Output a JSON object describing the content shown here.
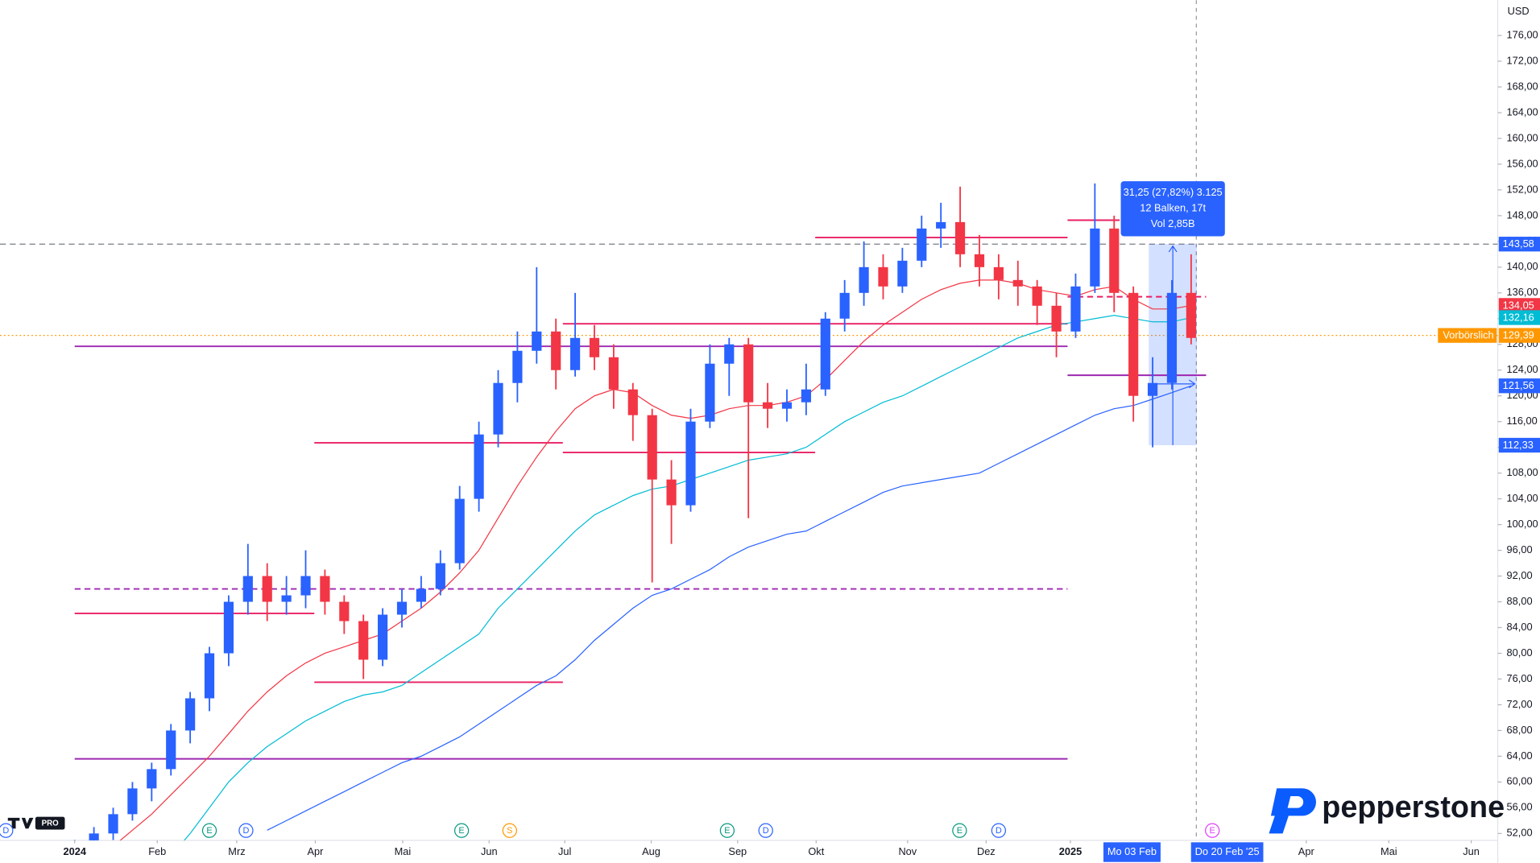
{
  "chart_data": {
    "type": "candlestick",
    "currency": "USD",
    "badge": "PRO",
    "watermark": "pepperstone",
    "xlim": [
      -3.88,
      73.93
    ],
    "ylim": [
      50.93,
      181.5
    ],
    "xticks": [
      {
        "value": 0,
        "label": "2024"
      },
      {
        "value": 4.29,
        "label": "Feb"
      },
      {
        "value": 8.42,
        "label": "Mrz"
      },
      {
        "value": 12.5,
        "label": "Apr"
      },
      {
        "value": 17.04,
        "label": "Mai"
      },
      {
        "value": 21.53,
        "label": "Jun"
      },
      {
        "value": 25.46,
        "label": "Jul"
      },
      {
        "value": 29.95,
        "label": "Aug"
      },
      {
        "value": 34.44,
        "label": "Sep"
      },
      {
        "value": 38.52,
        "label": "Okt"
      },
      {
        "value": 43.27,
        "label": "Nov"
      },
      {
        "value": 47.35,
        "label": "Dez"
      },
      {
        "value": 51.73,
        "label": "2025"
      },
      {
        "value": 63.98,
        "label": "Apr"
      },
      {
        "value": 68.27,
        "label": "Mai"
      },
      {
        "value": 72.55,
        "label": "Jun"
      }
    ],
    "yticks": [
      {
        "value": 52,
        "label": "52,00"
      },
      {
        "value": 56,
        "label": "56,00"
      },
      {
        "value": 60,
        "label": "60,00"
      },
      {
        "value": 64,
        "label": "64,00"
      },
      {
        "value": 68,
        "label": "68,00"
      },
      {
        "value": 72,
        "label": "72,00"
      },
      {
        "value": 76,
        "label": "76,00"
      },
      {
        "value": 80,
        "label": "80,00"
      },
      {
        "value": 84,
        "label": "84,00"
      },
      {
        "value": 88,
        "label": "88,00"
      },
      {
        "value": 92,
        "label": "92,00"
      },
      {
        "value": 96,
        "label": "96,00"
      },
      {
        "value": 100,
        "label": "100,00"
      },
      {
        "value": 104,
        "label": "104,00"
      },
      {
        "value": 108,
        "label": "108,00"
      },
      {
        "value": 112,
        "label": "112,00"
      },
      {
        "value": 116,
        "label": "116,00"
      },
      {
        "value": 120,
        "label": "120,00"
      },
      {
        "value": 124,
        "label": "124,00"
      },
      {
        "value": 128,
        "label": "128,00"
      },
      {
        "value": 132,
        "label": "132,00"
      },
      {
        "value": 136,
        "label": "136,00"
      },
      {
        "value": 140,
        "label": "140,00"
      },
      {
        "value": 144,
        "label": "144,00"
      },
      {
        "value": 148,
        "label": "148,00"
      },
      {
        "value": 152,
        "label": "152,00"
      },
      {
        "value": 156,
        "label": "156,00"
      },
      {
        "value": 160,
        "label": "160,00"
      },
      {
        "value": 164,
        "label": "164,00"
      },
      {
        "value": 168,
        "label": "168,00"
      },
      {
        "value": 172,
        "label": "172,00"
      },
      {
        "value": 176,
        "label": "176,00"
      }
    ],
    "x": [
      0,
      1,
      2,
      3,
      4,
      5,
      6,
      7,
      8,
      9,
      10,
      11,
      12,
      13,
      14,
      15,
      16,
      17,
      18,
      19,
      20,
      21,
      22,
      23,
      24,
      25,
      26,
      27,
      28,
      29,
      30,
      31,
      32,
      33,
      34,
      35,
      36,
      37,
      38,
      39,
      40,
      41,
      42,
      43,
      44,
      45,
      46,
      47,
      48,
      49,
      50,
      51,
      52,
      53,
      54,
      55,
      56,
      57,
      58
    ],
    "candles": {
      "up_color": "#2962ff",
      "down_color": "#f23645",
      "open": [
        48,
        50,
        52,
        55,
        59,
        62,
        68,
        73,
        80,
        88,
        92,
        88,
        89,
        92,
        88,
        85,
        79,
        86,
        88,
        90,
        94,
        104,
        114,
        122,
        127,
        130,
        124,
        129,
        126,
        121,
        117,
        107,
        103,
        116,
        125,
        128,
        119,
        118,
        119,
        121,
        132,
        136,
        140,
        137,
        141,
        146,
        147,
        142,
        140,
        138,
        137,
        134,
        130,
        137,
        146,
        136,
        120,
        122,
        136
      ],
      "high": [
        51,
        53,
        56,
        60,
        63,
        69,
        74,
        81,
        89,
        97,
        94,
        92,
        96,
        93,
        89,
        86,
        87,
        90,
        92,
        96,
        106,
        116,
        124,
        130,
        140,
        132,
        136,
        131,
        128,
        122,
        118,
        110,
        118,
        128,
        129,
        129,
        122,
        121,
        125,
        133,
        138,
        144,
        142,
        143,
        148,
        150,
        152.5,
        145,
        142,
        141,
        138,
        136,
        139,
        153,
        148,
        137,
        126,
        138,
        142
      ],
      "low": [
        47,
        49,
        51,
        54,
        57,
        61,
        66,
        71,
        78,
        86,
        85,
        86,
        87,
        86,
        83,
        76,
        78,
        84,
        87,
        89,
        93,
        102,
        112,
        119,
        125,
        121,
        123,
        124,
        118,
        113,
        91,
        97,
        102,
        115,
        120,
        101,
        115,
        116,
        117,
        120,
        130,
        134,
        135,
        136,
        140,
        143,
        140,
        137,
        135,
        134,
        131,
        126,
        129,
        136,
        133,
        116,
        112,
        121,
        128
      ],
      "close": [
        50,
        52,
        55,
        59,
        62,
        68,
        73,
        80,
        88,
        92,
        88,
        89,
        92,
        88,
        85,
        79,
        86,
        88,
        90,
        94,
        104,
        114,
        122,
        127,
        130,
        124,
        129,
        126,
        121,
        117,
        107,
        103,
        116,
        125,
        128,
        119,
        118,
        119,
        121,
        132,
        136,
        140,
        137,
        141,
        146,
        147,
        142,
        140,
        138,
        137,
        134,
        130,
        137,
        146,
        136,
        120,
        122,
        136,
        129
      ]
    },
    "lines": [
      {
        "color": "#f23645",
        "values": [
          null,
          48,
          50,
          52.5,
          55,
          58,
          61,
          64,
          67.5,
          71,
          74,
          76.5,
          78.5,
          80,
          81,
          82,
          83,
          85,
          87,
          89.5,
          92.5,
          96,
          101,
          106,
          110.5,
          114.5,
          118,
          120,
          121,
          120.5,
          118.5,
          117,
          116.5,
          117,
          118,
          118.5,
          118.5,
          119,
          120,
          122.5,
          125.5,
          128.5,
          131,
          133,
          135,
          136.5,
          137.5,
          138,
          138,
          137.5,
          136.5,
          136,
          135.5,
          136.5,
          137,
          135,
          133.5,
          133.5,
          134.05
        ]
      },
      {
        "color": "#00bcd4",
        "values": [
          null,
          null,
          null,
          null,
          null,
          48.5,
          52,
          56,
          60,
          63,
          65.5,
          67.5,
          69.5,
          71,
          72.5,
          73.5,
          74,
          75,
          77,
          79,
          81,
          83,
          87,
          90,
          93,
          96,
          99,
          101.5,
          103,
          104.5,
          105.5,
          106,
          107,
          108,
          109,
          110,
          110.5,
          111,
          112,
          114,
          116,
          117.5,
          119,
          120,
          121.5,
          123,
          124.5,
          126,
          127.5,
          129,
          130,
          131,
          131.5,
          132,
          132.5,
          132,
          131.5,
          131.5,
          132.16
        ]
      },
      {
        "color": "#2962ff",
        "values": [
          null,
          null,
          null,
          null,
          null,
          null,
          null,
          null,
          null,
          null,
          52.5,
          54,
          55.5,
          57,
          58.5,
          60,
          61.5,
          63,
          64,
          65.5,
          67,
          69,
          71,
          73,
          75,
          76.5,
          79,
          82,
          84.5,
          87,
          89,
          90,
          91.5,
          93,
          95,
          96.5,
          97.5,
          98.5,
          99,
          100.5,
          102,
          103.5,
          105,
          106,
          106.5,
          107,
          107.5,
          108,
          109.5,
          111,
          112.5,
          114,
          115.5,
          117,
          118,
          118.5,
          119.5,
          120.5,
          121.56
        ]
      }
    ],
    "levels": [
      {
        "value": 127.7,
        "from": 0,
        "to": 51.58,
        "color": "#9c27b0",
        "style": "solid"
      },
      {
        "value": 63.6,
        "from": 0,
        "to": 51.58,
        "color": "#9c27b0",
        "style": "solid"
      },
      {
        "value": 90.0,
        "from": 0,
        "to": 51.58,
        "color": "#9c27b0",
        "style": "dashed"
      },
      {
        "value": 144.6,
        "from": 38.47,
        "to": 51.58,
        "color": "#e91e63",
        "style": "solid"
      },
      {
        "value": 131.2,
        "from": 25.36,
        "to": 51.58,
        "color": "#e91e63",
        "style": "solid"
      },
      {
        "value": 112.7,
        "from": 12.45,
        "to": 25.36,
        "color": "#e91e63",
        "style": "solid"
      },
      {
        "value": 111.2,
        "from": 25.36,
        "to": 38.47,
        "color": "#e91e63",
        "style": "solid"
      },
      {
        "value": 86.2,
        "from": 0,
        "to": 12.45,
        "color": "#e91e63",
        "style": "solid"
      },
      {
        "value": 75.5,
        "from": 12.45,
        "to": 25.36,
        "color": "#e91e63",
        "style": "solid"
      },
      {
        "value": 147.3,
        "from": 51.58,
        "to": 54.29,
        "color": "#e91e63",
        "style": "solid"
      },
      {
        "value": 123.2,
        "from": 51.58,
        "to": 58.78,
        "color": "#9c27b0",
        "style": "solid"
      },
      {
        "value": 135.4,
        "from": 51.58,
        "to": 58.78,
        "color": "#e91e63",
        "style": "dashed"
      }
    ],
    "price_labels": [
      {
        "value": 143.58,
        "label": "143,58",
        "color": "#2962ff",
        "guide": "dashed"
      },
      {
        "value": 134.05,
        "label": "134,05",
        "color": "#f23645"
      },
      {
        "value": 132.16,
        "label": "132,16",
        "color": "#00bcd4"
      },
      {
        "value": 129.39,
        "label": "129,39",
        "color": "#ff9800",
        "guide": "dotted",
        "tag": "Vorbörslich"
      },
      {
        "value": 121.56,
        "label": "121,56",
        "color": "#2962ff"
      },
      {
        "value": 112.33,
        "label": "112,33",
        "color": "#2962ff"
      }
    ],
    "crosshair_x": 58.27,
    "measure": {
      "from": 55.8,
      "to": 58.3,
      "low": 112.33,
      "high": 143.58,
      "lines": [
        "31,25 (27,82%) 3.125",
        "12 Balken, 17t",
        "Vol 2,85B"
      ],
      "start_label": "Mo 03 Feb",
      "end_label": "Do 20 Feb '25"
    },
    "events": [
      {
        "label": "D",
        "x": -3.7,
        "color": "#2962ff"
      },
      {
        "label": "E",
        "x": 7.0,
        "color": "#089981"
      },
      {
        "label": "D",
        "x": 8.9,
        "color": "#2962ff"
      },
      {
        "label": "E",
        "x": 20.1,
        "color": "#089981"
      },
      {
        "label": "S",
        "x": 22.6,
        "color": "#ff9800"
      },
      {
        "label": "E",
        "x": 33.9,
        "color": "#089981"
      },
      {
        "label": "D",
        "x": 35.9,
        "color": "#2962ff"
      },
      {
        "label": "E",
        "x": 45.97,
        "color": "#089981"
      },
      {
        "label": "D",
        "x": 48.0,
        "color": "#2962ff"
      },
      {
        "label": "E",
        "x": 59.1,
        "color": "#e040fb"
      }
    ]
  }
}
